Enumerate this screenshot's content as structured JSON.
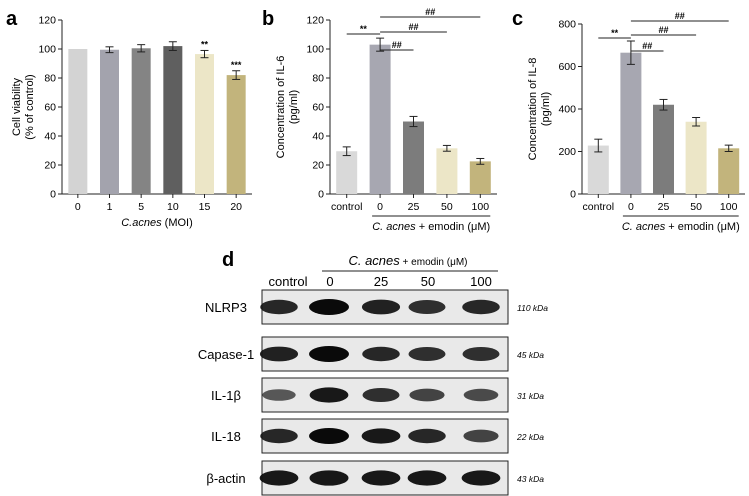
{
  "chart_data": [
    {
      "panel": "a",
      "type": "bar",
      "categories": [
        "0",
        "1",
        "5",
        "10",
        "15",
        "20"
      ],
      "values": [
        100,
        99.5,
        100.5,
        102,
        96.5,
        82
      ],
      "errors": [
        0,
        2,
        2.5,
        3,
        2.5,
        3
      ],
      "significance": [
        "",
        "",
        "",
        "",
        "**",
        "***"
      ],
      "bar_colors": [
        "#d3d3d3",
        "#a3a3ad",
        "#848484",
        "#5f5f5f",
        "#ece6c7",
        "#c2b47c"
      ],
      "xlabel_italic": "C.acnes",
      "xlabel_rest": " (MOI)",
      "ylabel_lines": [
        "Cell viability",
        "(% of control)"
      ],
      "ylim": [
        0,
        120
      ],
      "yticks": [
        0,
        20,
        40,
        60,
        80,
        100,
        120
      ]
    },
    {
      "panel": "b",
      "type": "bar",
      "categories": [
        "control",
        "0",
        "25",
        "50",
        "100"
      ],
      "values": [
        29.5,
        103,
        50,
        31.5,
        22.5
      ],
      "errors": [
        3,
        4.5,
        3.5,
        2,
        2
      ],
      "bar_colors": [
        "#d9d9d9",
        "#a7a7b1",
        "#7c7c7c",
        "#ece6c7",
        "#c2b47c"
      ],
      "comparisons": [
        {
          "from": 0,
          "to": 1,
          "label": "**"
        },
        {
          "from": 1,
          "to": 2,
          "label": "##"
        },
        {
          "from": 1,
          "to": 3,
          "label": "##"
        },
        {
          "from": 1,
          "to": 4,
          "label": "##"
        }
      ],
      "group_label_italic": "C. acnes",
      "group_label_rest": " + emodin (μM)",
      "ylabel_lines": [
        "Concentration of IL-6",
        "(pg/ml)"
      ],
      "ylim": [
        0,
        120
      ],
      "yticks": [
        0,
        20,
        40,
        60,
        80,
        100,
        120
      ]
    },
    {
      "panel": "c",
      "type": "bar",
      "categories": [
        "control",
        "0",
        "25",
        "50",
        "100"
      ],
      "values": [
        228,
        665,
        420,
        340,
        215
      ],
      "errors": [
        30,
        55,
        25,
        20,
        15
      ],
      "bar_colors": [
        "#d9d9d9",
        "#a7a7b1",
        "#7c7c7c",
        "#ece6c7",
        "#c2b47c"
      ],
      "comparisons": [
        {
          "from": 0,
          "to": 1,
          "label": "**"
        },
        {
          "from": 1,
          "to": 2,
          "label": "##"
        },
        {
          "from": 1,
          "to": 3,
          "label": "##"
        },
        {
          "from": 1,
          "to": 4,
          "label": "##"
        }
      ],
      "group_label_italic": "C. acnes",
      "group_label_rest": " + emodin (μM)",
      "ylabel_lines": [
        "Concentration of IL-8",
        "(pg/ml)"
      ],
      "ylim": [
        0,
        800
      ],
      "yticks": [
        0,
        200,
        400,
        600,
        800
      ]
    }
  ],
  "blot": {
    "panel": "d",
    "header_italic": "C. acnes",
    "header_rest": " + emodin (μM)",
    "lanes": [
      "control",
      "0",
      "25",
      "50",
      "100"
    ],
    "rows": [
      {
        "label": "NLRP3",
        "kda": "110 kDa",
        "intensity": [
          0.8,
          1.0,
          0.85,
          0.75,
          0.8
        ]
      },
      {
        "label": "Capase-1",
        "kda": "45 kDa",
        "intensity": [
          0.85,
          1.0,
          0.8,
          0.75,
          0.75
        ]
      },
      {
        "label": "IL-1β",
        "kda": "31 kDa",
        "intensity": [
          0.45,
          0.9,
          0.75,
          0.6,
          0.55
        ]
      },
      {
        "label": "IL-18",
        "kda": "22 kDa",
        "intensity": [
          0.8,
          1.0,
          0.9,
          0.8,
          0.6
        ]
      },
      {
        "label": "β-actin",
        "kda": "43 kDa",
        "intensity": [
          0.9,
          0.92,
          0.9,
          0.9,
          0.9
        ]
      }
    ]
  }
}
